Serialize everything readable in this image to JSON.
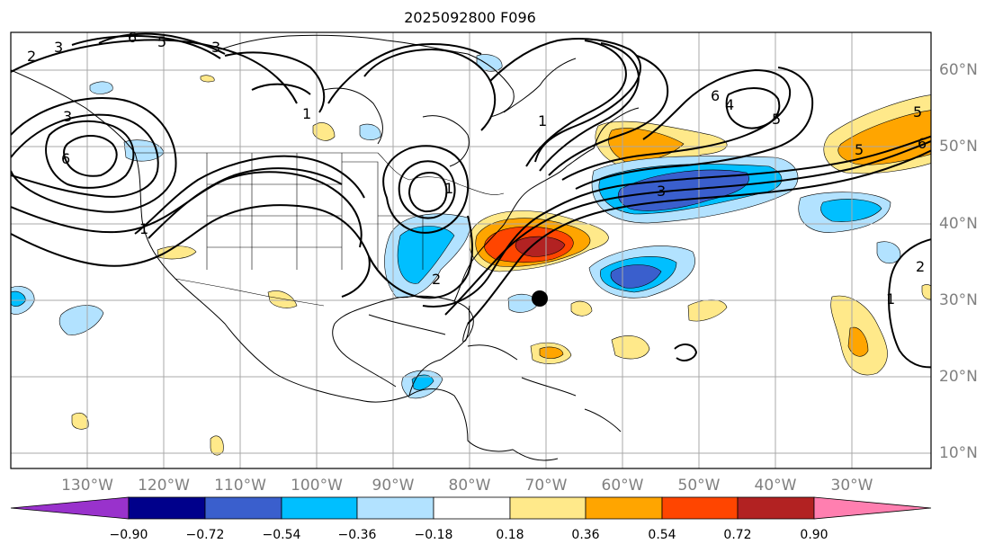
{
  "title": "2025092800 F096",
  "lon_labels": [
    "130°W",
    "120°W",
    "110°W",
    "100°W",
    "90°W",
    "80°W",
    "70°W",
    "60°W",
    "50°W",
    "40°W",
    "30°W"
  ],
  "lat_labels": [
    "60°N",
    "50°N",
    "40°N",
    "30°N",
    "20°N",
    "10°N"
  ],
  "colorbar": {
    "ticks": [
      "−0.90",
      "−0.72",
      "−0.54",
      "−0.36",
      "−0.18",
      "0.18",
      "0.36",
      "0.54",
      "0.72",
      "0.90"
    ],
    "colors": [
      "#9932cc",
      "#00008b",
      "#3a5fcd",
      "#00bfff",
      "#b2e2ff",
      "#ffffff",
      "#ffe98a",
      "#ffa500",
      "#ff4500",
      "#b22222",
      "#ff7fb0"
    ]
  },
  "contour_labels": [
    "2",
    "3",
    "6",
    "5",
    "3",
    "1",
    "3",
    "6",
    "6",
    "4",
    "5",
    "1",
    "5",
    "1",
    "2",
    "5",
    "6",
    "3",
    "1",
    "2",
    "1"
  ],
  "marker": "storm-center-dot"
}
